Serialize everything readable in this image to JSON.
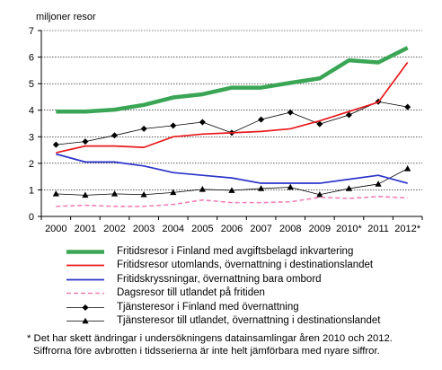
{
  "chart_data": {
    "type": "line",
    "ylabel": "miljoner resor",
    "ylim": [
      0,
      7
    ],
    "yticks": [
      0,
      1,
      2,
      3,
      4,
      5,
      6,
      7
    ],
    "categories": [
      "2000",
      "2001",
      "2002",
      "2003",
      "2004",
      "2005",
      "2006",
      "2007",
      "2008",
      "2009",
      "2010*",
      "2011",
      "2012*"
    ],
    "grid": true,
    "legend_position": "bottom",
    "series": [
      {
        "name": "Fritidsresor i Finland med avgiftsbelagd inkvartering",
        "color": "#3aa655",
        "style": "thick",
        "marker": "none",
        "values": [
          3.95,
          3.95,
          4.02,
          4.2,
          4.48,
          4.6,
          4.85,
          4.85,
          5.03,
          5.2,
          5.88,
          5.8,
          6.35
        ]
      },
      {
        "name": "Fritidsresor utomlands, övernattning i destinationslandet",
        "color": "#e8191c",
        "style": "solid",
        "marker": "none",
        "values": [
          2.4,
          2.65,
          2.65,
          2.6,
          3.0,
          3.1,
          3.15,
          3.2,
          3.3,
          3.6,
          3.95,
          4.3,
          5.8
        ]
      },
      {
        "name": "Fritidskryssningar, övernattning bara ombord",
        "color": "#2b33c9",
        "style": "solid",
        "marker": "none",
        "values": [
          2.35,
          2.05,
          2.05,
          1.9,
          1.65,
          1.55,
          1.45,
          1.25,
          1.25,
          1.25,
          1.4,
          1.55,
          1.25
        ]
      },
      {
        "name": "Dagsresor till utlandet på fritiden",
        "color": "#f080b8",
        "style": "dashed",
        "marker": "none",
        "values": [
          0.38,
          0.42,
          0.38,
          0.38,
          0.45,
          0.62,
          0.52,
          0.52,
          0.55,
          0.72,
          0.68,
          0.75,
          0.7
        ]
      },
      {
        "name": "Tjänsteresor i Finland med övernattning",
        "color": "#000000",
        "style": "thin",
        "marker": "diamond",
        "values": [
          2.7,
          2.82,
          3.05,
          3.3,
          3.42,
          3.55,
          3.15,
          3.65,
          3.92,
          3.48,
          3.82,
          4.32,
          4.12
        ]
      },
      {
        "name": "Tjänsteresor till utlandet, övernattning i destinationslandet",
        "color": "#000000",
        "style": "thin",
        "marker": "triangle",
        "values": [
          0.85,
          0.8,
          0.85,
          0.82,
          0.9,
          1.02,
          0.98,
          1.05,
          1.1,
          0.82,
          1.05,
          1.22,
          1.8
        ]
      }
    ],
    "footnote": [
      "* Det har skett ändringar i undersökningens datainsamlingar åren 2010 och 2012.",
      "Siffrorna före avbrotten i tidsserierna är inte helt jämförbara med nyare siffror."
    ]
  }
}
